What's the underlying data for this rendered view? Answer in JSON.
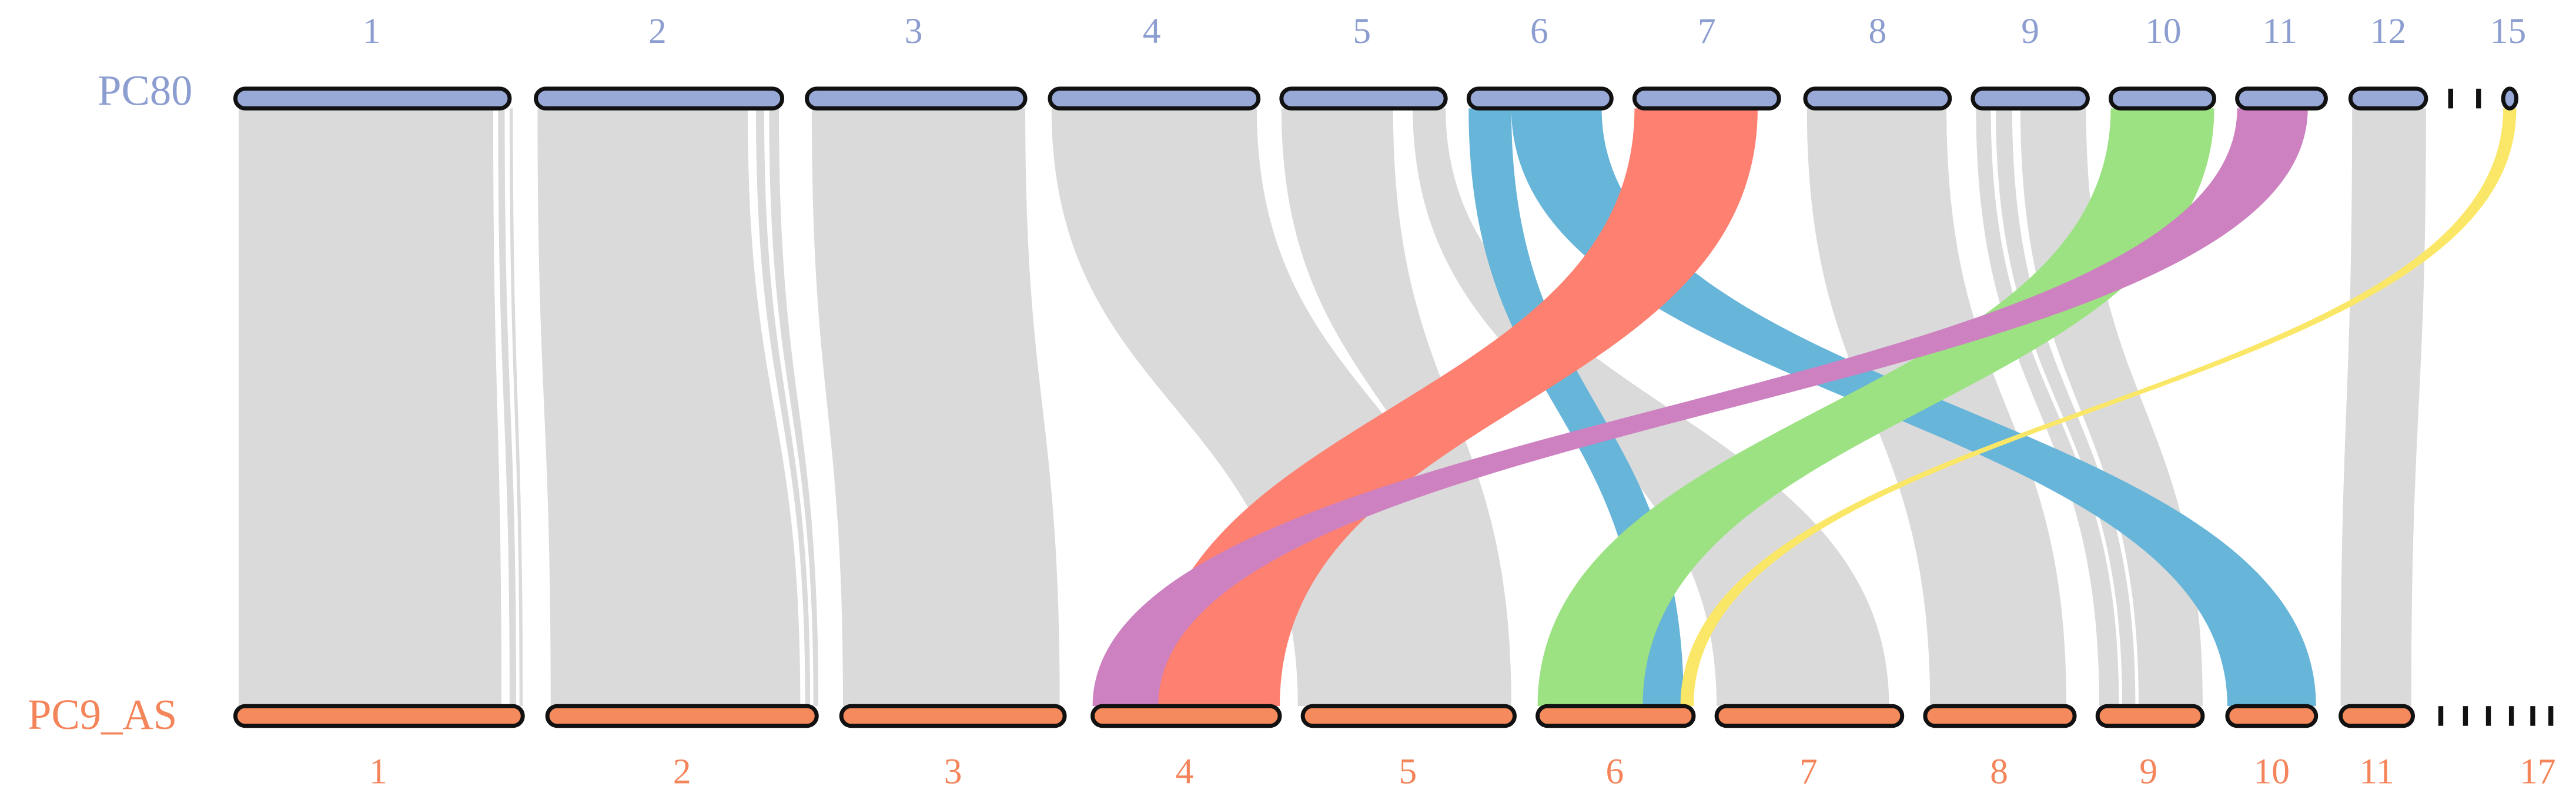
{
  "genomes": [
    {
      "name": "PC80",
      "chromosomes": [
        "1",
        "2",
        "3",
        "4",
        "5",
        "6",
        "7",
        "8",
        "9",
        "10",
        "11",
        "12",
        "15"
      ]
    },
    {
      "name": "PC9_AS",
      "chromosomes": [
        "1",
        "2",
        "3",
        "4",
        "5",
        "6",
        "7",
        "8",
        "9",
        "10",
        "11",
        "17"
      ]
    }
  ]
}
